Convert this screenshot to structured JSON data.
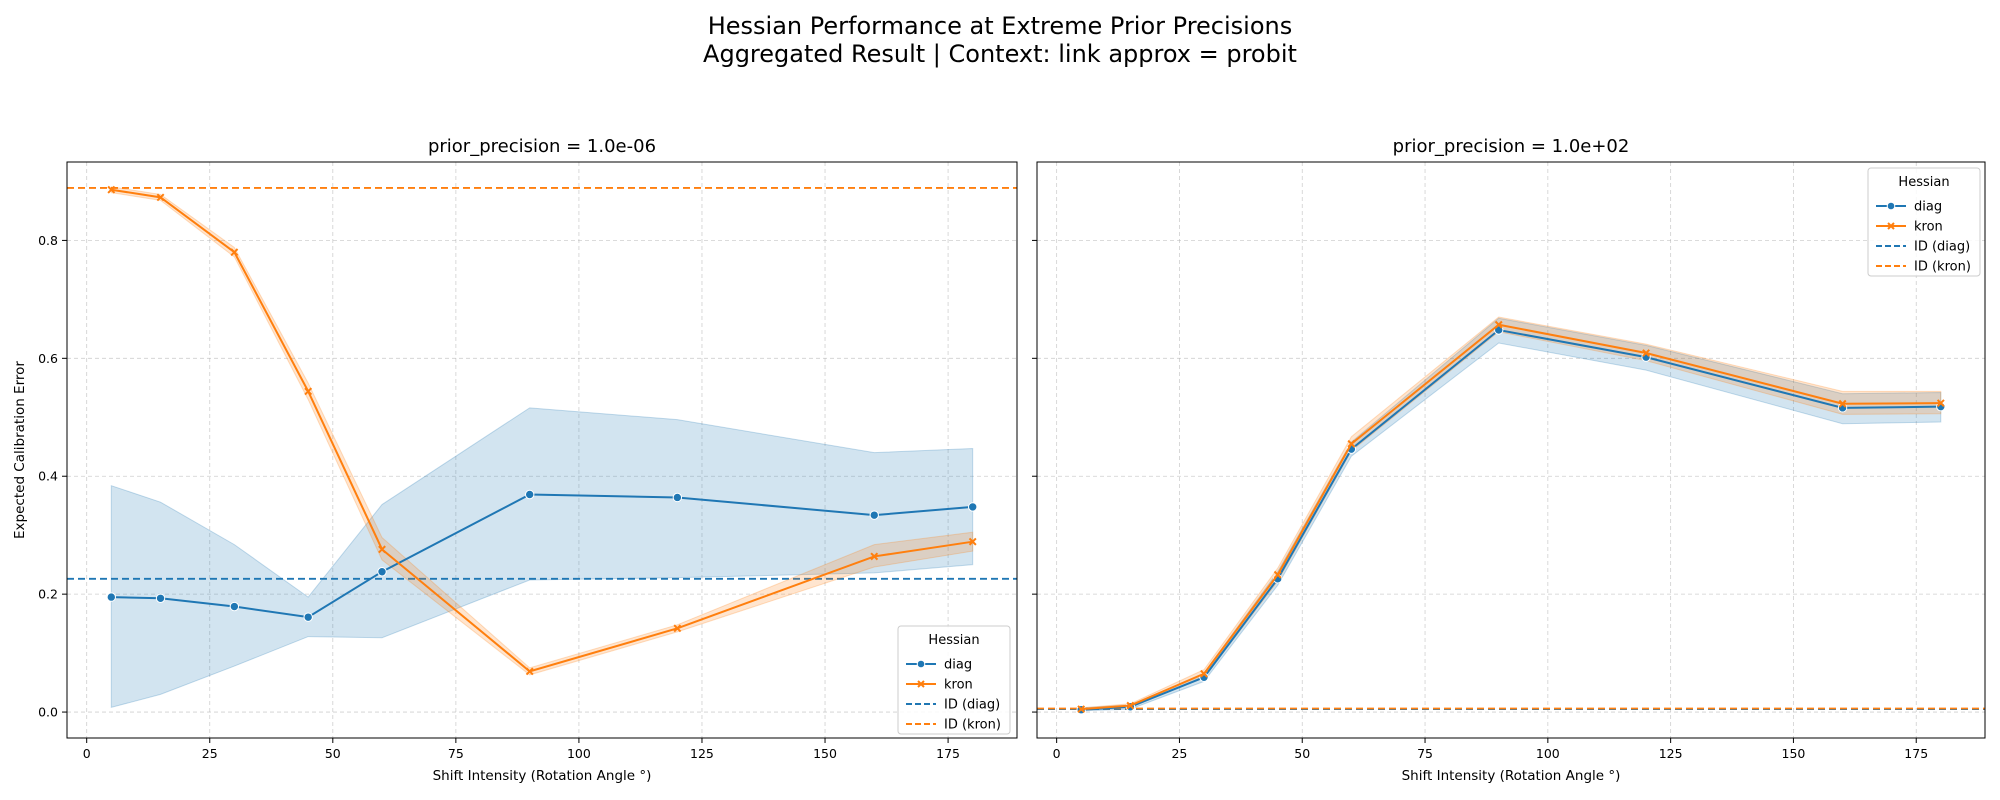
{
  "figure": {
    "title_line1": "Hessian Performance at Extreme Prior Precisions",
    "title_line2": "Aggregated Result | Context: link approx = probit"
  },
  "colors": {
    "diag": "#1f77b4",
    "kron": "#ff7f0e",
    "grid": "#b0b0b0",
    "axes": "#000000"
  },
  "chart_data": [
    {
      "type": "line",
      "title": "prior_precision = 1.0e-06",
      "xlabel": "Shift Intensity (Rotation Angle °)",
      "ylabel": "Expected Calibration Error",
      "xlim": [
        -4,
        189
      ],
      "ylim": [
        -0.044,
        0.933
      ],
      "xticks": [
        0,
        25,
        50,
        75,
        100,
        125,
        150,
        175
      ],
      "yticks": [
        0.0,
        0.2,
        0.4,
        0.6,
        0.8
      ],
      "ytick_labels": [
        "0.0",
        "0.2",
        "0.4",
        "0.6",
        "0.8"
      ],
      "grid": true,
      "legend": {
        "title": "Hessian",
        "position": "lower-right",
        "entries": [
          "diag",
          "kron",
          "ID (diag)",
          "ID (kron)"
        ]
      },
      "x": [
        5,
        15,
        30,
        45,
        60,
        90,
        120,
        160,
        180
      ],
      "series": [
        {
          "name": "diag",
          "marker": "circle",
          "color": "#1f77b4",
          "values": [
            0.195,
            0.193,
            0.179,
            0.161,
            0.238,
            0.369,
            0.364,
            0.334,
            0.348
          ],
          "ci_low": [
            0.008,
            0.03,
            0.078,
            0.128,
            0.126,
            0.224,
            0.228,
            0.236,
            0.25
          ],
          "ci_high": [
            0.384,
            0.356,
            0.284,
            0.195,
            0.352,
            0.516,
            0.496,
            0.44,
            0.447
          ]
        },
        {
          "name": "kron",
          "marker": "x",
          "color": "#ff7f0e",
          "values": [
            0.886,
            0.873,
            0.78,
            0.544,
            0.276,
            0.069,
            0.142,
            0.264,
            0.289
          ],
          "ci_low": [
            0.881,
            0.868,
            0.772,
            0.53,
            0.258,
            0.063,
            0.136,
            0.246,
            0.273
          ],
          "ci_high": [
            0.891,
            0.878,
            0.788,
            0.558,
            0.296,
            0.075,
            0.148,
            0.284,
            0.305
          ]
        }
      ],
      "reference_lines": [
        {
          "name": "ID (diag)",
          "y": 0.226,
          "style": "dashed",
          "color": "#1f77b4"
        },
        {
          "name": "ID (kron)",
          "y": 0.889,
          "style": "dashed",
          "color": "#ff7f0e"
        }
      ]
    },
    {
      "type": "line",
      "title": "prior_precision = 1.0e+02",
      "xlabel": "Shift Intensity (Rotation Angle °)",
      "ylabel": "",
      "xlim": [
        -4,
        189
      ],
      "ylim": [
        -0.044,
        0.933
      ],
      "xticks": [
        0,
        25,
        50,
        75,
        100,
        125,
        150,
        175
      ],
      "yticks": [
        0.0,
        0.2,
        0.4,
        0.6,
        0.8
      ],
      "ytick_labels": [
        "",
        "",
        "",
        "",
        ""
      ],
      "grid": true,
      "legend": {
        "title": "Hessian",
        "position": "upper-right",
        "entries": [
          "diag",
          "kron",
          "ID (diag)",
          "ID (kron)"
        ]
      },
      "x": [
        5,
        15,
        30,
        45,
        60,
        90,
        120,
        160,
        180
      ],
      "series": [
        {
          "name": "diag",
          "marker": "circle",
          "color": "#1f77b4",
          "values": [
            0.004,
            0.009,
            0.059,
            0.226,
            0.446,
            0.648,
            0.602,
            0.516,
            0.518
          ],
          "ci_low": [
            0.002,
            0.005,
            0.052,
            0.215,
            0.434,
            0.626,
            0.58,
            0.489,
            0.492
          ],
          "ci_high": [
            0.007,
            0.012,
            0.066,
            0.238,
            0.458,
            0.668,
            0.622,
            0.54,
            0.542
          ]
        },
        {
          "name": "kron",
          "marker": "x",
          "color": "#ff7f0e",
          "values": [
            0.005,
            0.011,
            0.065,
            0.233,
            0.455,
            0.657,
            0.609,
            0.523,
            0.524
          ],
          "ci_low": [
            0.003,
            0.008,
            0.058,
            0.222,
            0.443,
            0.645,
            0.596,
            0.505,
            0.506
          ],
          "ci_high": [
            0.007,
            0.014,
            0.072,
            0.244,
            0.467,
            0.67,
            0.624,
            0.544,
            0.544
          ]
        }
      ],
      "reference_lines": [
        {
          "name": "ID (diag)",
          "y": 0.005,
          "style": "dashed",
          "color": "#1f77b4"
        },
        {
          "name": "ID (kron)",
          "y": 0.006,
          "style": "dashed",
          "color": "#ff7f0e"
        }
      ]
    }
  ]
}
